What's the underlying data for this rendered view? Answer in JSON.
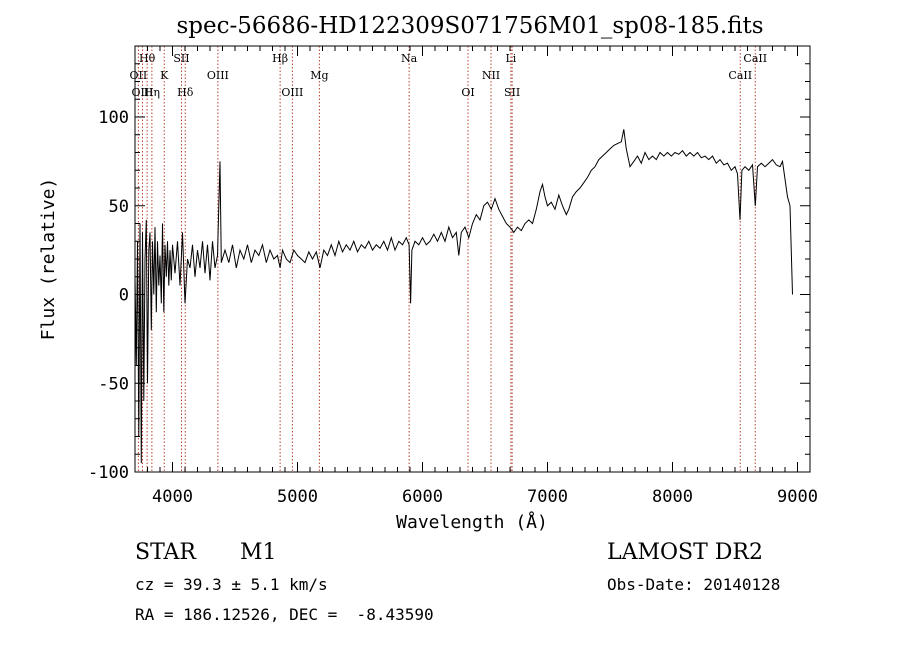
{
  "chart_data": {
    "type": "line",
    "title": "spec-56686-HD122309S071756M01_sp08-185.fits",
    "xlabel": "Wavelength (Å)",
    "ylabel": "Flux (relative)",
    "xlim": [
      3700,
      9100
    ],
    "ylim": [
      -100,
      140
    ],
    "x_ticks": [
      4000,
      5000,
      6000,
      7000,
      8000,
      9000
    ],
    "y_ticks": [
      -100,
      -50,
      0,
      50,
      100
    ],
    "grid": false,
    "series": [
      {
        "line_color": "#000000",
        "points": [
          [
            3700,
            10
          ],
          [
            3710,
            -40
          ],
          [
            3720,
            30
          ],
          [
            3730,
            -80
          ],
          [
            3740,
            40
          ],
          [
            3750,
            -95
          ],
          [
            3760,
            35
          ],
          [
            3770,
            -60
          ],
          [
            3780,
            20
          ],
          [
            3790,
            42
          ],
          [
            3800,
            -50
          ],
          [
            3810,
            25
          ],
          [
            3820,
            35
          ],
          [
            3830,
            -20
          ],
          [
            3840,
            30
          ],
          [
            3850,
            0
          ],
          [
            3860,
            38
          ],
          [
            3870,
            -10
          ],
          [
            3880,
            30
          ],
          [
            3890,
            5
          ],
          [
            3900,
            22
          ],
          [
            3910,
            -5
          ],
          [
            3920,
            40
          ],
          [
            3930,
            -10
          ],
          [
            3940,
            28
          ],
          [
            3950,
            10
          ],
          [
            3960,
            30
          ],
          [
            3970,
            5
          ],
          [
            3980,
            25
          ],
          [
            3990,
            8
          ],
          [
            4000,
            28
          ],
          [
            4020,
            12
          ],
          [
            4040,
            30
          ],
          [
            4060,
            5
          ],
          [
            4080,
            35
          ],
          [
            4100,
            -5
          ],
          [
            4120,
            20
          ],
          [
            4140,
            15
          ],
          [
            4160,
            28
          ],
          [
            4180,
            10
          ],
          [
            4200,
            25
          ],
          [
            4220,
            15
          ],
          [
            4240,
            30
          ],
          [
            4260,
            12
          ],
          [
            4280,
            28
          ],
          [
            4300,
            8
          ],
          [
            4320,
            30
          ],
          [
            4340,
            15
          ],
          [
            4360,
            22
          ],
          [
            4380,
            75
          ],
          [
            4390,
            18
          ],
          [
            4420,
            25
          ],
          [
            4450,
            18
          ],
          [
            4480,
            28
          ],
          [
            4510,
            15
          ],
          [
            4540,
            25
          ],
          [
            4570,
            20
          ],
          [
            4600,
            28
          ],
          [
            4630,
            18
          ],
          [
            4660,
            25
          ],
          [
            4690,
            22
          ],
          [
            4720,
            28
          ],
          [
            4750,
            18
          ],
          [
            4780,
            25
          ],
          [
            4810,
            20
          ],
          [
            4840,
            22
          ],
          [
            4861,
            15
          ],
          [
            4880,
            25
          ],
          [
            4910,
            20
          ],
          [
            4940,
            18
          ],
          [
            4970,
            25
          ],
          [
            5000,
            22
          ],
          [
            5030,
            20
          ],
          [
            5060,
            18
          ],
          [
            5090,
            24
          ],
          [
            5120,
            20
          ],
          [
            5150,
            24
          ],
          [
            5180,
            15
          ],
          [
            5210,
            25
          ],
          [
            5240,
            22
          ],
          [
            5270,
            28
          ],
          [
            5300,
            22
          ],
          [
            5330,
            30
          ],
          [
            5360,
            24
          ],
          [
            5390,
            28
          ],
          [
            5420,
            25
          ],
          [
            5450,
            30
          ],
          [
            5480,
            24
          ],
          [
            5510,
            28
          ],
          [
            5540,
            26
          ],
          [
            5570,
            30
          ],
          [
            5600,
            25
          ],
          [
            5630,
            28
          ],
          [
            5660,
            26
          ],
          [
            5690,
            30
          ],
          [
            5720,
            25
          ],
          [
            5750,
            32
          ],
          [
            5780,
            25
          ],
          [
            5810,
            30
          ],
          [
            5840,
            28
          ],
          [
            5870,
            32
          ],
          [
            5893,
            28
          ],
          [
            5905,
            -5
          ],
          [
            5915,
            25
          ],
          [
            5940,
            30
          ],
          [
            5970,
            28
          ],
          [
            6000,
            32
          ],
          [
            6030,
            28
          ],
          [
            6060,
            30
          ],
          [
            6090,
            34
          ],
          [
            6120,
            30
          ],
          [
            6150,
            35
          ],
          [
            6180,
            30
          ],
          [
            6210,
            38
          ],
          [
            6240,
            32
          ],
          [
            6270,
            35
          ],
          [
            6290,
            22
          ],
          [
            6310,
            35
          ],
          [
            6340,
            38
          ],
          [
            6370,
            32
          ],
          [
            6400,
            40
          ],
          [
            6430,
            45
          ],
          [
            6460,
            42
          ],
          [
            6490,
            50
          ],
          [
            6520,
            52
          ],
          [
            6550,
            48
          ],
          [
            6580,
            54
          ],
          [
            6610,
            48
          ],
          [
            6640,
            44
          ],
          [
            6670,
            40
          ],
          [
            6700,
            38
          ],
          [
            6730,
            35
          ],
          [
            6760,
            38
          ],
          [
            6790,
            36
          ],
          [
            6820,
            40
          ],
          [
            6850,
            42
          ],
          [
            6880,
            40
          ],
          [
            6910,
            48
          ],
          [
            6940,
            58
          ],
          [
            6960,
            62
          ],
          [
            6980,
            55
          ],
          [
            7000,
            50
          ],
          [
            7030,
            52
          ],
          [
            7060,
            48
          ],
          [
            7090,
            56
          ],
          [
            7120,
            50
          ],
          [
            7150,
            45
          ],
          [
            7170,
            48
          ],
          [
            7200,
            55
          ],
          [
            7230,
            58
          ],
          [
            7260,
            60
          ],
          [
            7290,
            63
          ],
          [
            7320,
            66
          ],
          [
            7350,
            70
          ],
          [
            7380,
            72
          ],
          [
            7410,
            76
          ],
          [
            7440,
            78
          ],
          [
            7470,
            80
          ],
          [
            7500,
            82
          ],
          [
            7530,
            84
          ],
          [
            7560,
            85
          ],
          [
            7590,
            86
          ],
          [
            7610,
            93
          ],
          [
            7630,
            82
          ],
          [
            7660,
            72
          ],
          [
            7690,
            75
          ],
          [
            7720,
            78
          ],
          [
            7750,
            74
          ],
          [
            7780,
            80
          ],
          [
            7810,
            76
          ],
          [
            7840,
            78
          ],
          [
            7870,
            76
          ],
          [
            7900,
            80
          ],
          [
            7930,
            78
          ],
          [
            7960,
            80
          ],
          [
            7990,
            78
          ],
          [
            8020,
            80
          ],
          [
            8050,
            79
          ],
          [
            8080,
            81
          ],
          [
            8110,
            78
          ],
          [
            8140,
            80
          ],
          [
            8170,
            78
          ],
          [
            8200,
            80
          ],
          [
            8230,
            77
          ],
          [
            8260,
            78
          ],
          [
            8290,
            76
          ],
          [
            8320,
            78
          ],
          [
            8350,
            74
          ],
          [
            8380,
            76
          ],
          [
            8410,
            73
          ],
          [
            8440,
            74
          ],
          [
            8470,
            70
          ],
          [
            8500,
            72
          ],
          [
            8520,
            68
          ],
          [
            8540,
            42
          ],
          [
            8555,
            70
          ],
          [
            8580,
            72
          ],
          [
            8610,
            70
          ],
          [
            8640,
            73
          ],
          [
            8662,
            50
          ],
          [
            8680,
            72
          ],
          [
            8710,
            74
          ],
          [
            8740,
            72
          ],
          [
            8770,
            74
          ],
          [
            8800,
            76
          ],
          [
            8830,
            73
          ],
          [
            8860,
            72
          ],
          [
            8880,
            75
          ],
          [
            8900,
            65
          ],
          [
            8920,
            55
          ],
          [
            8940,
            50
          ],
          [
            8960,
            0
          ]
        ]
      }
    ],
    "line_markers": [
      {
        "label": "Hθ",
        "x": 3797,
        "row": 0
      },
      {
        "label": "OII",
        "x": 3727,
        "row": 1
      },
      {
        "label": "OIII",
        "x": 3760,
        "row": 2
      },
      {
        "label": "Hη",
        "x": 3835,
        "row": 2
      },
      {
        "label": "K",
        "x": 3934,
        "row": 1
      },
      {
        "label": "SII",
        "x": 4072,
        "row": 0
      },
      {
        "label": "Hδ",
        "x": 4102,
        "row": 2
      },
      {
        "label": "OIII",
        "x": 4363,
        "row": 1
      },
      {
        "label": "Hβ",
        "x": 4861,
        "row": 0
      },
      {
        "label": "OIII",
        "x": 4959,
        "row": 2
      },
      {
        "label": "Mg",
        "x": 5175,
        "row": 1
      },
      {
        "label": "Na",
        "x": 5893,
        "row": 0
      },
      {
        "label": "OI",
        "x": 6364,
        "row": 2
      },
      {
        "label": "NII",
        "x": 6548,
        "row": 1
      },
      {
        "label": "Li",
        "x": 6707,
        "row": 0
      },
      {
        "label": "SII",
        "x": 6717,
        "row": 2
      },
      {
        "label": "CaII",
        "x": 8542,
        "row": 1
      },
      {
        "label": "CaII",
        "x": 8662,
        "row": 0
      }
    ]
  },
  "info": {
    "class": "STAR",
    "subclass": "M1",
    "survey": "LAMOST DR2",
    "cz": "cz = 39.3 ± 5.1 km/s",
    "obs_date": "Obs-Date: 20140128",
    "coords": "RA = 186.12526, DEC =  -8.43590"
  }
}
